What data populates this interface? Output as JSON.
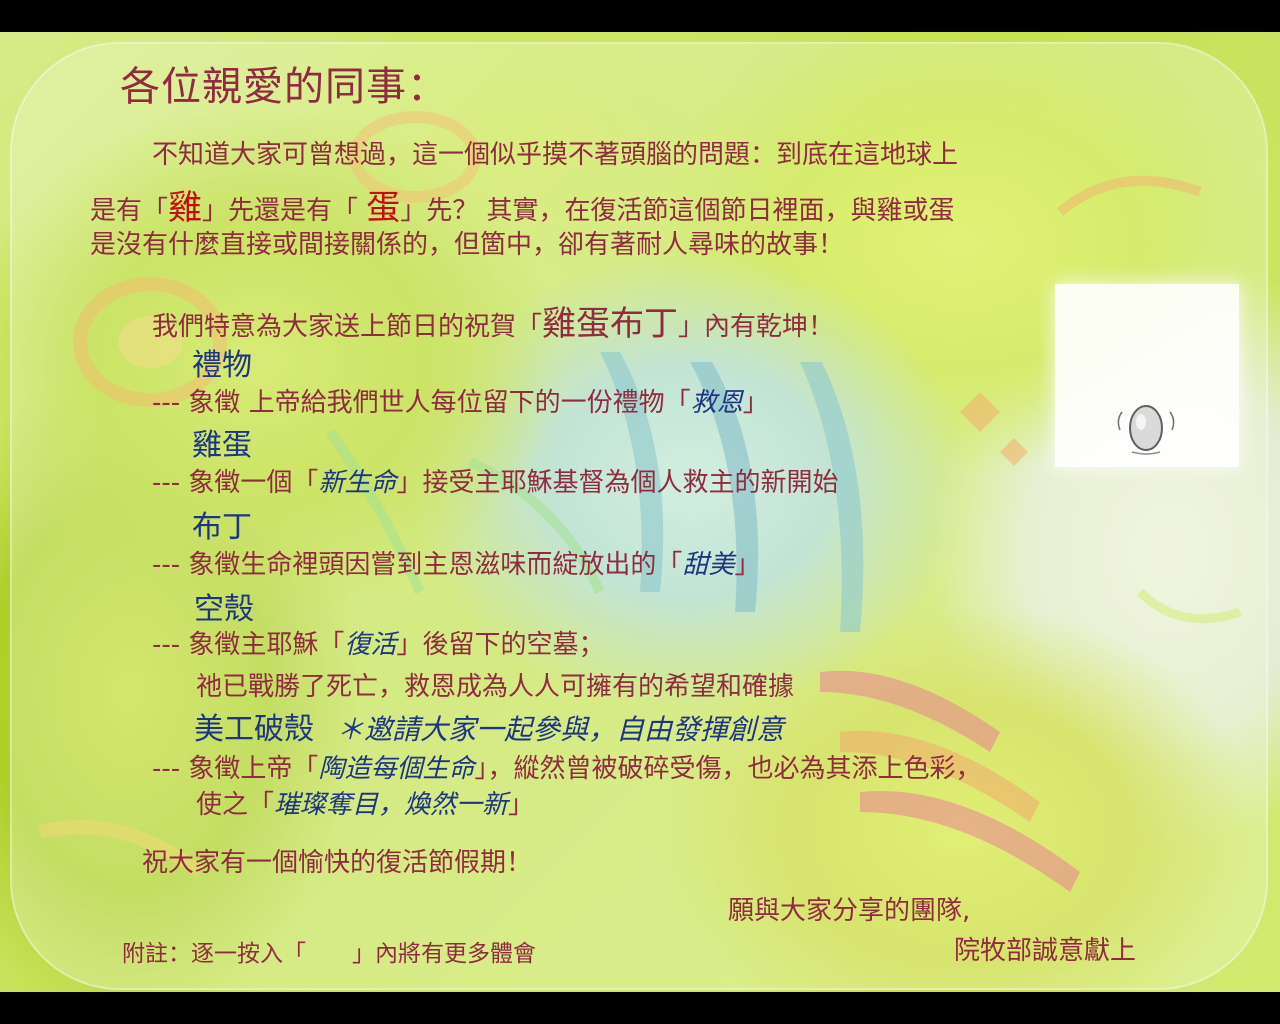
{
  "greeting": "各位親愛的同事：",
  "intro": {
    "line1": "不知道大家可曾想過，這一個似乎摸不著頭腦的問題：到底在這地球上",
    "line2_a": "是有「",
    "line2_chicken": "雞",
    "line2_b": "」先還是有「 ",
    "line2_egg": "蛋",
    "line2_c": "」先？ 其實，在復活節這個節日裡面，與雞或蛋",
    "line3": "是沒有什麼直接或間接關係的，但箇中，卻有著耐人尋味的故事！"
  },
  "gift_line": {
    "before": "我們特意為大家送上節日的祝賀「",
    "highlight": "雞蛋布丁",
    "after": "」內有乾坤！"
  },
  "items": [
    {
      "title": "禮物",
      "lines": [
        {
          "prefix": "--- ",
          "before": "象徵 上帝給我們世人每位留下的一份禮物「",
          "em": "救恩",
          "after": "」"
        }
      ]
    },
    {
      "title": "雞蛋",
      "lines": [
        {
          "prefix": "--- ",
          "before": "象徵一個「",
          "em": "新生命",
          "after": "」接受主耶穌基督為個人救主的新開始"
        }
      ]
    },
    {
      "title": "布丁",
      "lines": [
        {
          "prefix": "--- ",
          "before": "象徵生命裡頭因嘗到主恩滋味而綻放出的「",
          "em": "甜美",
          "after": "」"
        }
      ]
    },
    {
      "title": "空殼",
      "lines": [
        {
          "prefix": "--- ",
          "before": "象徵主耶穌「",
          "em": "復活",
          "after": "」後留下的空墓；"
        },
        {
          "prefix": "",
          "before": "祂已戰勝了死亡，救恩成為人人可擁有的希望和確據",
          "em": "",
          "after": ""
        }
      ]
    },
    {
      "title": "美工破殼",
      "title_em": "＊邀請大家一起參與，自由發揮創意",
      "lines": [
        {
          "prefix": "--- ",
          "before": "象徵上帝「",
          "em": "陶造每個生命",
          "after": "」，縱然曾被破碎受傷，也必為其添上色彩，"
        },
        {
          "prefix": "",
          "before": "使之「",
          "em": "璀璨奪目，煥然一新",
          "after": "」"
        }
      ]
    }
  ],
  "closing": "祝大家有一個愉快的復活節假期！",
  "signoff": {
    "line1": "願與大家分享的團隊,",
    "line2": "院牧部誠意獻上"
  },
  "footnote": "附註：逐一按入「　　」內將有更多體會",
  "colors": {
    "maroon": "#8a1f34",
    "navy": "#102a7a",
    "red": "#c00000",
    "background": "#c4e04e"
  }
}
